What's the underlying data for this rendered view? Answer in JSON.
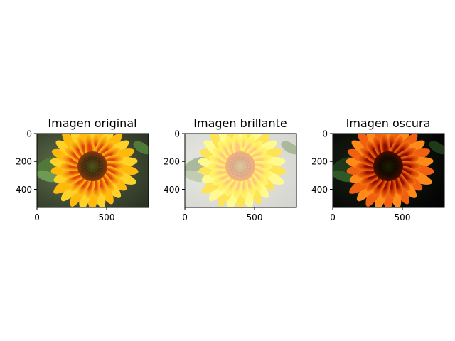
{
  "panels": [
    {
      "id": "original",
      "title": "Imagen original",
      "variant": "original",
      "x_ticks": [
        "0",
        "500"
      ],
      "y_ticks": [
        "0",
        "200",
        "400"
      ]
    },
    {
      "id": "bright",
      "title": "Imagen brillante",
      "variant": "bright",
      "x_ticks": [
        "0",
        "500"
      ],
      "y_ticks": [
        "0",
        "200",
        "400"
      ]
    },
    {
      "id": "dark",
      "title": "Imagen oscura",
      "variant": "dark",
      "x_ticks": [
        "0",
        "500"
      ],
      "y_ticks": [
        "0",
        "200",
        "400"
      ]
    }
  ],
  "image_extent": {
    "width": 800,
    "height": 530
  },
  "colors": {
    "petal_original": "#f7a90e",
    "petal_original_outer": "#e8650c",
    "center_original": "#3d2a10",
    "background_original": "#4b5a3c",
    "petal_bright": "#fff25a",
    "background_bright": "#d8d8d2",
    "petal_dark": "#e24a08",
    "background_dark": "#050505"
  }
}
